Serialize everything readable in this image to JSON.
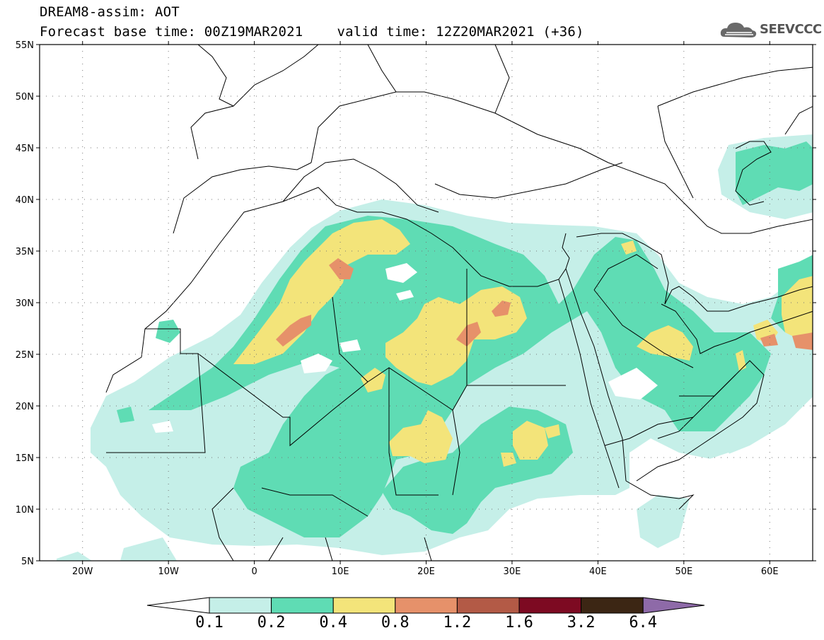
{
  "header": {
    "line1": "DREAM8-assim: AOT",
    "forecast_base": "Forecast base time: 00Z19MAR2021",
    "valid_time": "valid time: 12Z20MAR2021 (+36)"
  },
  "logo": {
    "text": "SEEVCCC",
    "icon": "cloud-logo-icon",
    "color": "#555555"
  },
  "map": {
    "lon_range": [
      -25,
      65
    ],
    "lat_range": [
      5,
      55
    ],
    "lat_ticks": [
      {
        "value": 55,
        "label": "55N"
      },
      {
        "value": 50,
        "label": "50N"
      },
      {
        "value": 45,
        "label": "45N"
      },
      {
        "value": 40,
        "label": "40N"
      },
      {
        "value": 35,
        "label": "35N"
      },
      {
        "value": 30,
        "label": "30N"
      },
      {
        "value": 25,
        "label": "25N"
      },
      {
        "value": 20,
        "label": "20N"
      },
      {
        "value": 15,
        "label": "15N"
      },
      {
        "value": 10,
        "label": "10N"
      },
      {
        "value": 5,
        "label": "5N"
      }
    ],
    "lon_ticks": [
      {
        "value": -20,
        "label": "20W"
      },
      {
        "value": -10,
        "label": "10W"
      },
      {
        "value": 0,
        "label": "0"
      },
      {
        "value": 10,
        "label": "10E"
      },
      {
        "value": 20,
        "label": "20E"
      },
      {
        "value": 30,
        "label": "30E"
      },
      {
        "value": 40,
        "label": "40E"
      },
      {
        "value": 50,
        "label": "50E"
      },
      {
        "value": 60,
        "label": "60E"
      }
    ],
    "grid": "dotted"
  },
  "colorbar": {
    "labels": [
      "0.1",
      "0.2",
      "0.4",
      "0.8",
      "1.2",
      "1.6",
      "3.2",
      "6.4"
    ],
    "colors": [
      "#ffffff",
      "#c5efe8",
      "#5fdcb4",
      "#f3e47a",
      "#e6916a",
      "#b35a46",
      "#7d0a22",
      "#3c2614",
      "#8e6aa8"
    ]
  }
}
